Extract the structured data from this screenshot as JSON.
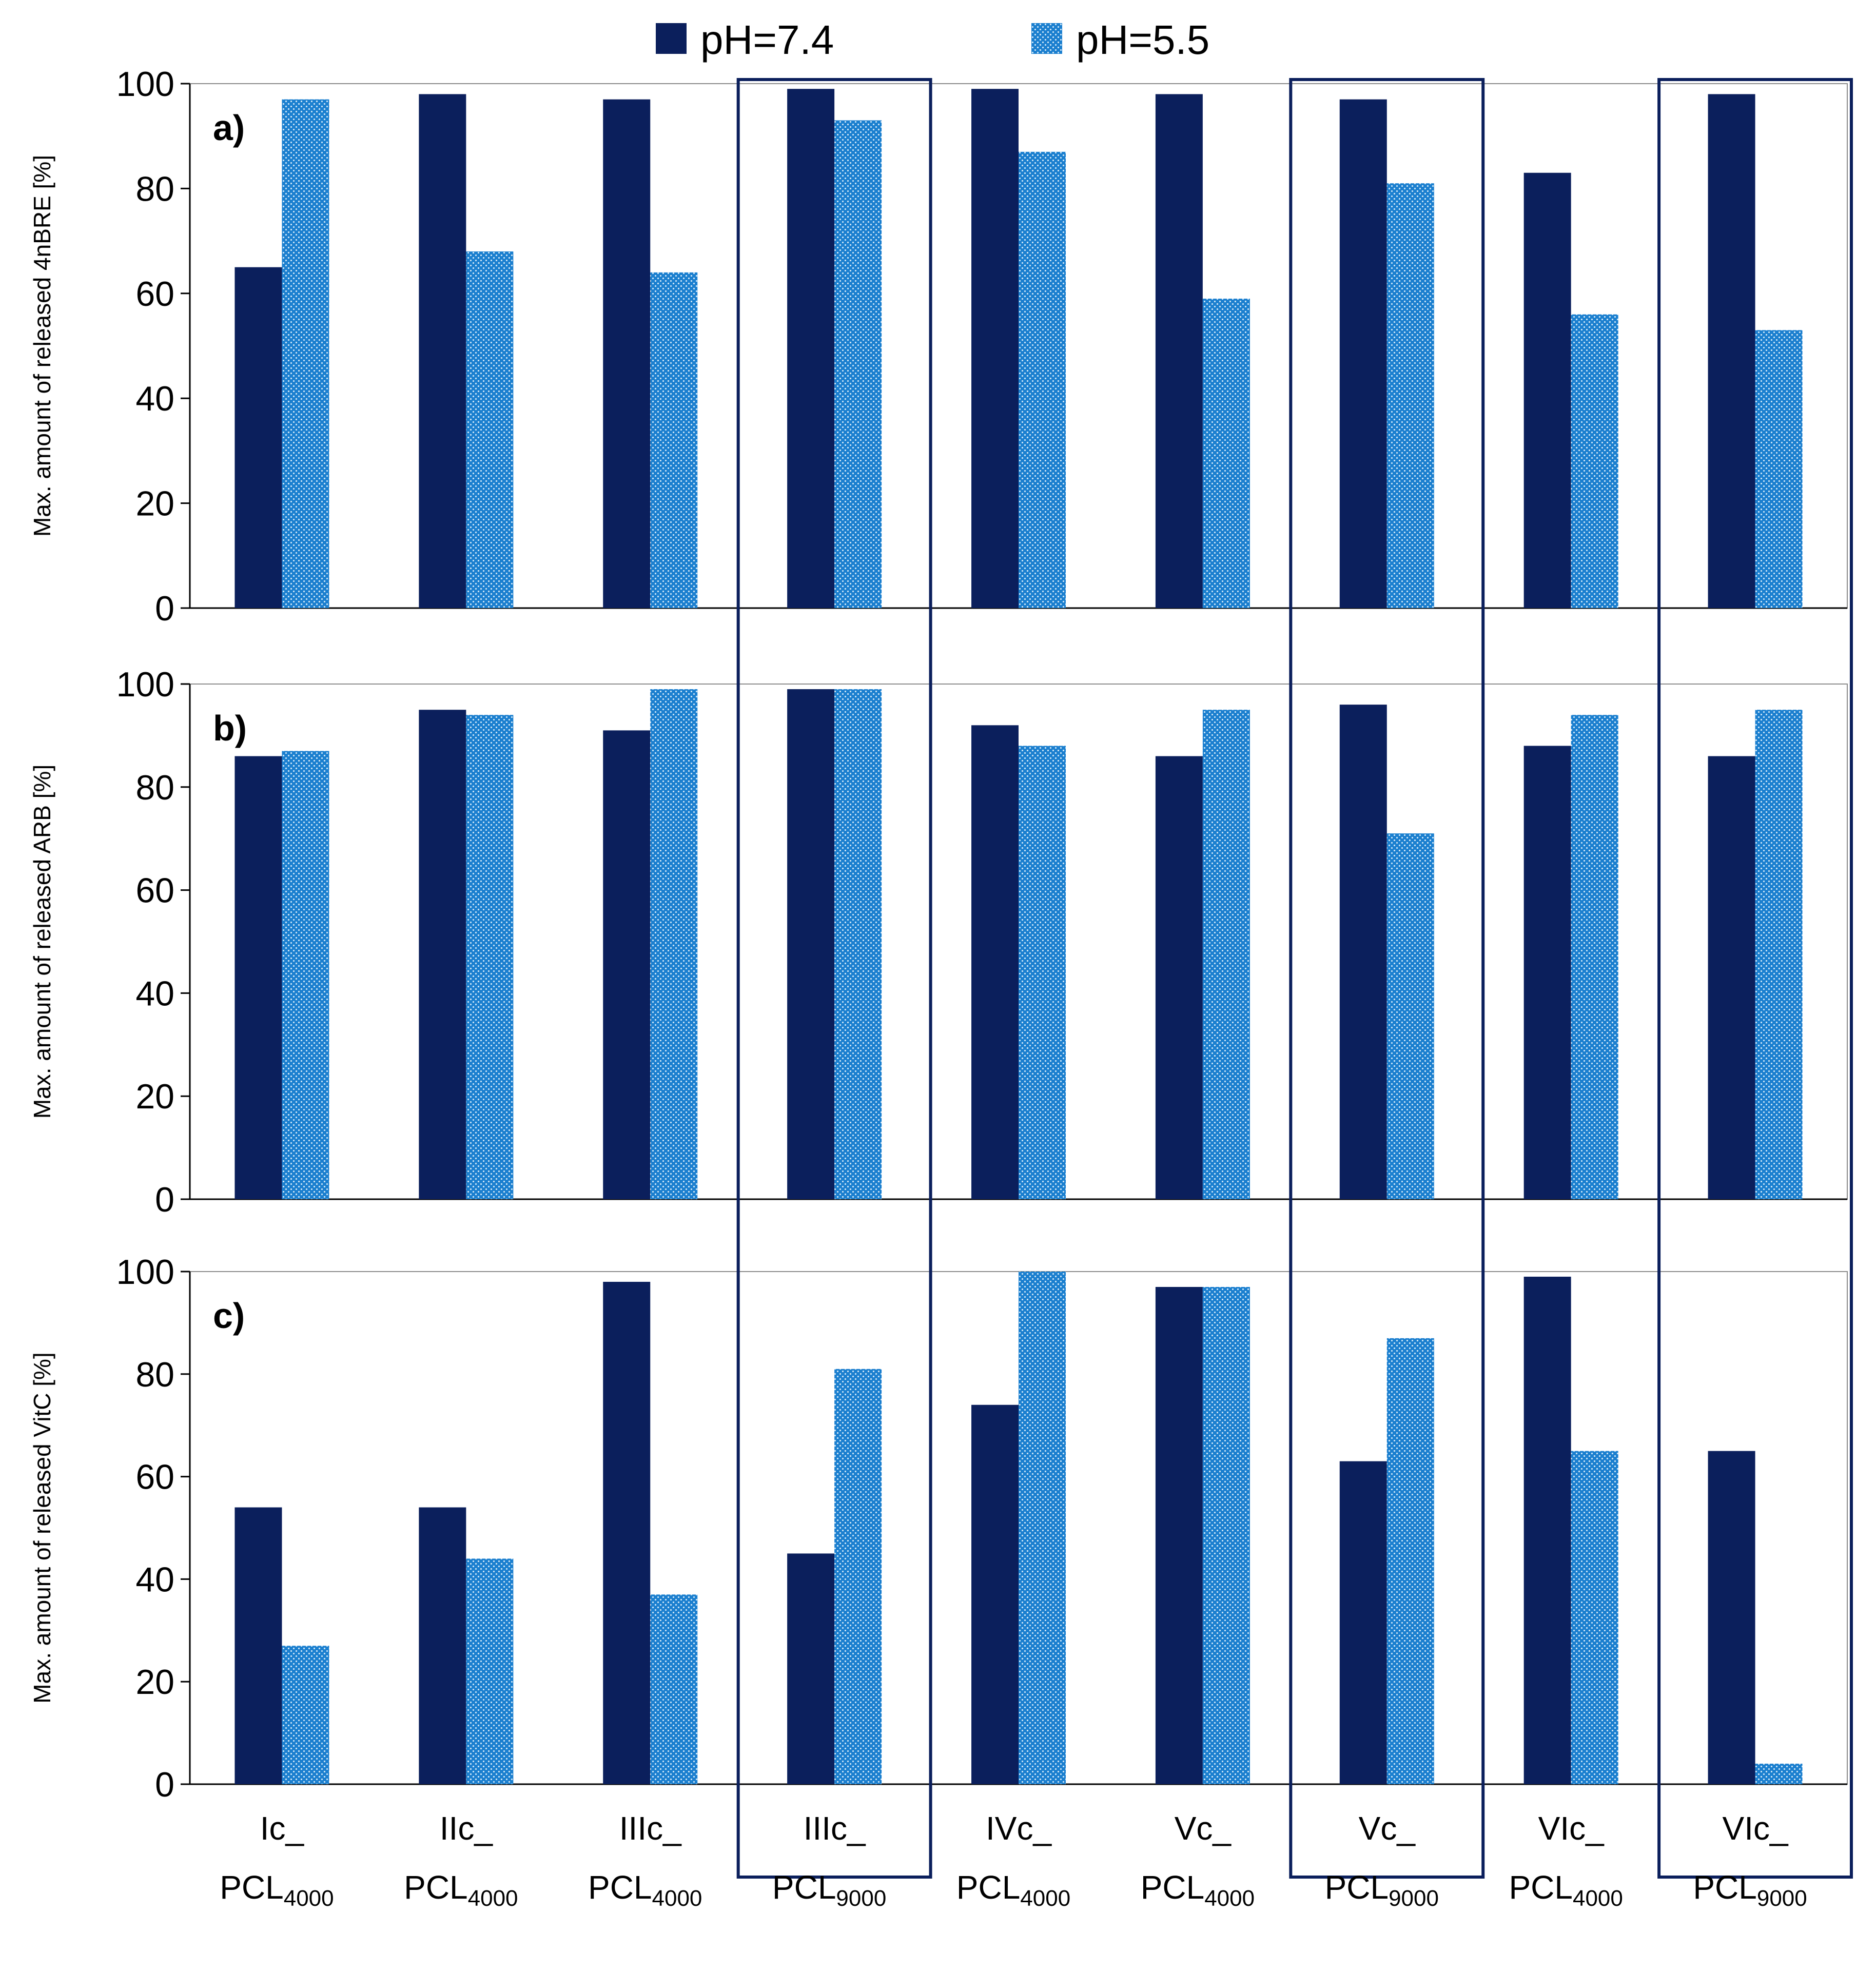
{
  "chart_data": {
    "type": "bar",
    "categories": [
      {
        "line1": "Ic_",
        "base": "PCL",
        "sub": "4000"
      },
      {
        "line1": "IIc_",
        "base": "PCL",
        "sub": "4000"
      },
      {
        "line1": "IIIc_",
        "base": "PCL",
        "sub": "4000"
      },
      {
        "line1": "IIIc_",
        "base": "PCL",
        "sub": "9000"
      },
      {
        "line1": "IVc_",
        "base": "PCL",
        "sub": "4000"
      },
      {
        "line1": "Vc_",
        "base": "PCL",
        "sub": "4000"
      },
      {
        "line1": "Vc_",
        "base": "PCL",
        "sub": "9000"
      },
      {
        "line1": "VIc_",
        "base": "PCL",
        "sub": "4000"
      },
      {
        "line1": "VIc_",
        "base": "PCL",
        "sub": "9000"
      }
    ],
    "highlighted_categories": [
      3,
      6,
      8
    ],
    "legend": [
      {
        "name": "pH=7.4",
        "color": "#0b1f5c",
        "pattern": "solid"
      },
      {
        "name": "pH=5.5",
        "color": "#1b7fcf",
        "pattern": "dotted"
      }
    ],
    "ylim": [
      0,
      100
    ],
    "yticks": [
      0,
      20,
      40,
      60,
      80,
      100
    ],
    "panels": [
      {
        "label": "a)",
        "ylabel": "Max. amount of released 4nBRE [%]",
        "series": [
          {
            "name": "pH=7.4",
            "values": [
              65,
              98,
              97,
              99,
              99,
              98,
              97,
              83,
              98
            ]
          },
          {
            "name": "pH=5.5",
            "values": [
              97,
              68,
              64,
              93,
              87,
              59,
              81,
              56,
              53
            ]
          }
        ]
      },
      {
        "label": "b)",
        "ylabel": "Max. amount of released ARB [%]",
        "series": [
          {
            "name": "pH=7.4",
            "values": [
              86,
              95,
              91,
              99,
              92,
              86,
              96,
              88,
              86
            ]
          },
          {
            "name": "pH=5.5",
            "values": [
              87,
              94,
              99,
              99,
              88,
              95,
              71,
              94,
              95
            ]
          }
        ]
      },
      {
        "label": "c)",
        "ylabel": "Max. amount of released VitC [%]",
        "series": [
          {
            "name": "pH=7.4",
            "values": [
              54,
              54,
              98,
              45,
              74,
              97,
              63,
              99,
              65
            ]
          },
          {
            "name": "pH=5.5",
            "values": [
              27,
              44,
              37,
              81,
              100,
              97,
              87,
              65,
              4
            ]
          }
        ]
      }
    ]
  }
}
